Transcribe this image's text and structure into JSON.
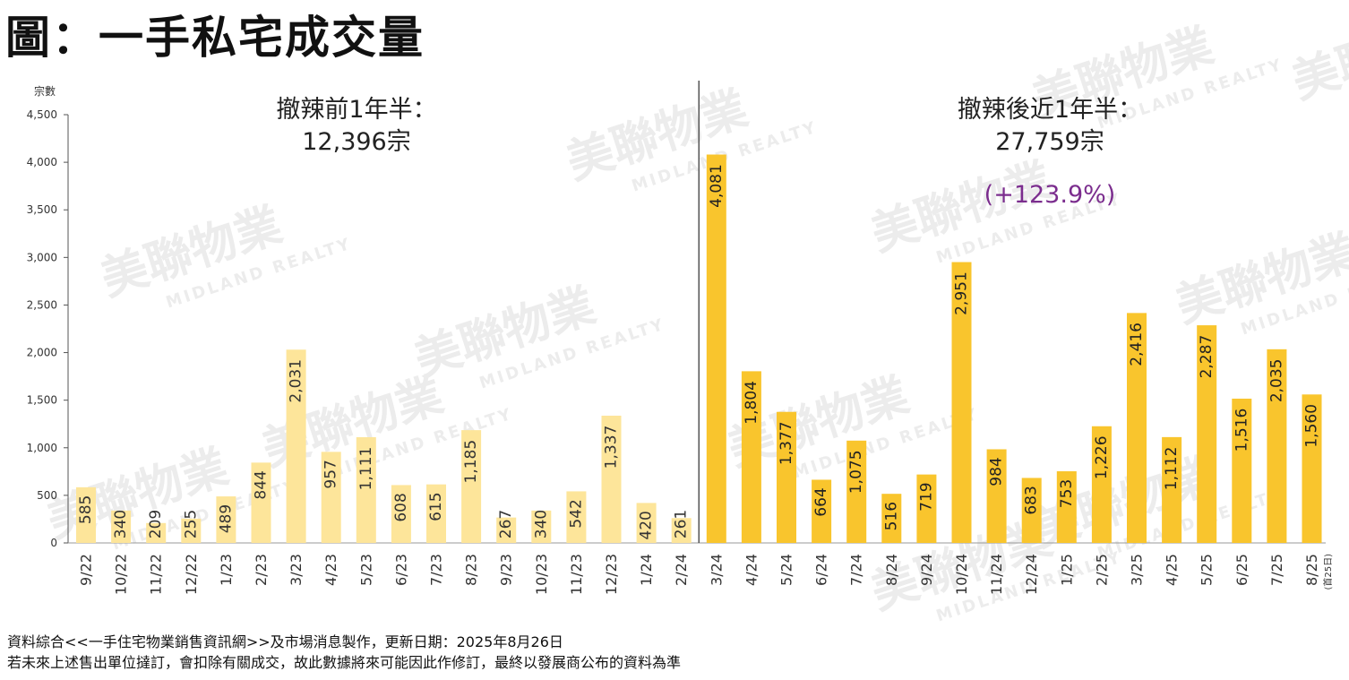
{
  "title": "圖：一手私宅成交量",
  "footer": {
    "line1": "資料綜合<<一手住宅物業銷售資訊網>>及市場消息製作，更新日期：2025年8月26日",
    "line2": "若未來上述售出單位撻訂，會扣除有關成交，故此數據將來可能因此作修訂，最終以發展商公布的資料為準"
  },
  "watermark": {
    "brand_cn": "美聯物業",
    "brand_en": "MIDLAND REALTY"
  },
  "colors": {
    "before": "#fde59a",
    "after": "#f9c52d",
    "before_label": "#333333",
    "after_label": "#222222",
    "pct": "#7b2d8e",
    "axis": "#555555",
    "divider": "#555555"
  },
  "chart_data": {
    "type": "bar",
    "ylabel": "宗數",
    "ylim": [
      0,
      4500
    ],
    "yticks": [
      "0",
      "500",
      "1,000",
      "1,500",
      "2,000",
      "2,500",
      "3,000",
      "3,500",
      "4,000",
      "4,500"
    ],
    "ytick_values": [
      0,
      500,
      1000,
      1500,
      2000,
      2500,
      3000,
      3500,
      4000,
      4500
    ],
    "categories": [
      "9/22",
      "10/22",
      "11/22",
      "12/22",
      "1/23",
      "2/23",
      "3/23",
      "4/23",
      "5/23",
      "6/23",
      "7/23",
      "8/23",
      "9/23",
      "10/23",
      "11/23",
      "12/23",
      "1/24",
      "2/24",
      "3/24",
      "4/24",
      "5/24",
      "6/24",
      "7/24",
      "8/24",
      "9/24",
      "10/24",
      "11/24",
      "12/24",
      "1/25",
      "2/25",
      "3/25",
      "4/25",
      "5/25",
      "6/25",
      "7/25",
      "8/25"
    ],
    "values": [
      585,
      340,
      209,
      255,
      489,
      844,
      2031,
      957,
      1111,
      608,
      615,
      1185,
      267,
      340,
      542,
      1337,
      420,
      261,
      4081,
      1804,
      1377,
      664,
      1075,
      516,
      719,
      2951,
      984,
      683,
      753,
      1226,
      2416,
      1112,
      2287,
      1516,
      2035,
      1560
    ],
    "value_labels": [
      "585",
      "340",
      "209",
      "255",
      "489",
      "844",
      "2,031",
      "957",
      "1,111",
      "608",
      "615",
      "1,185",
      "267",
      "340",
      "542",
      "1,337",
      "420",
      "261",
      "4,081",
      "1,804",
      "1,377",
      "664",
      "1,075",
      "516",
      "719",
      "2,951",
      "984",
      "683",
      "753",
      "1,226",
      "2,416",
      "1,112",
      "2,287",
      "1,516",
      "2,035",
      "1,560"
    ],
    "split_index": 18,
    "last_note": "(首25日)",
    "annotations": {
      "before_title": "撤辣前1年半：",
      "before_total": "12,396宗",
      "after_title": "撤辣後近1年半：",
      "after_total": "27,759宗",
      "after_pct": "(+123.9%)"
    }
  }
}
